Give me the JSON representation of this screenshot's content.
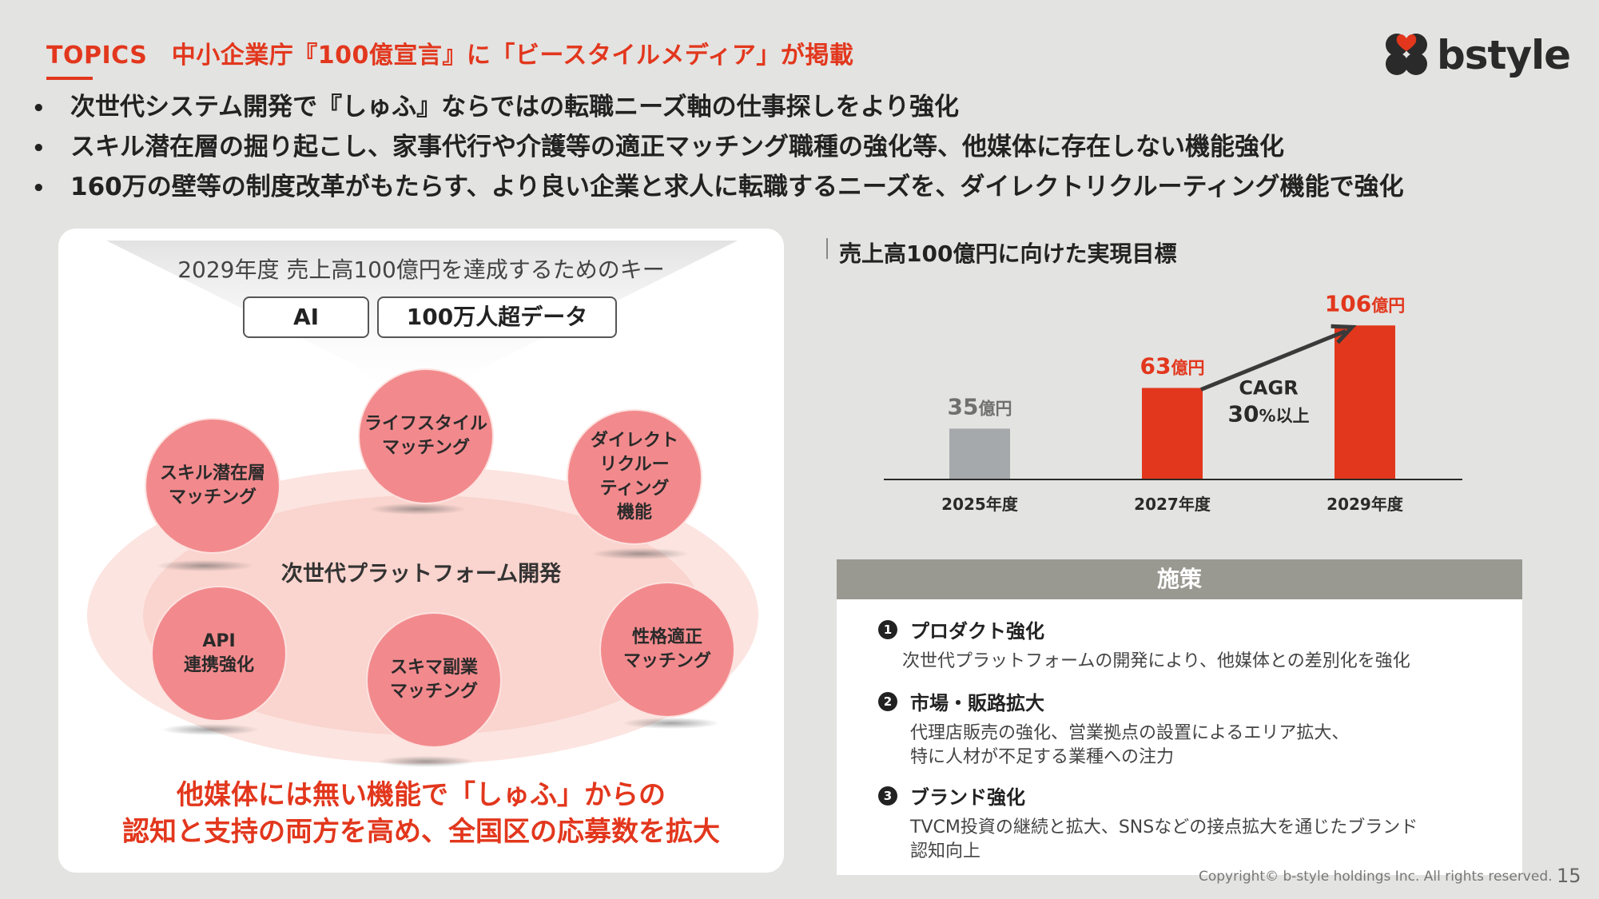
{
  "header": {
    "topic": "TOPICS　中小企業庁『100億宣言』に「ビースタイルメディア」が掲載",
    "logo_text": "bstyle"
  },
  "bullets": [
    "次世代システム開発で『しゅふ』ならではの転職ニーズ軸の仕事探しをより強化",
    "スキル潜在層の掘り起こし、家事代行や介護等の適正マッチング職種の強化等、他媒体に存在しない機能強化",
    "160万の壁等の制度改革がもたらす、より良い企業と求人に転職するニーズを、ダイレクトリクルーティング機能で強化"
  ],
  "left_panel": {
    "key_title": "2029年度 売上高100億円を達成するためのキー",
    "keys": [
      "AI",
      "100万人超データ"
    ],
    "circles": [
      "ライフスタイル\nマッチング",
      "スキル潜在層\nマッチング",
      "ダイレクト\nリクルー\nティング\n機能",
      "API\n連携強化",
      "スキマ副業\nマッチング",
      "性格適正\nマッチング"
    ],
    "platform": "次世代プラットフォーム開発",
    "tagline": "他媒体には無い機能で「しゅふ」からの\n認知と支持の両方を高め、全国区の応募数を拡大"
  },
  "chart_data": {
    "type": "bar",
    "title": "売上高100億円に向けた実現目標",
    "categories": [
      "2025年度",
      "2027年度",
      "2029年度"
    ],
    "values": [
      35,
      63,
      106
    ],
    "value_labels": [
      "35",
      "63",
      "106"
    ],
    "unit": "億円",
    "ylim": [
      0,
      110
    ],
    "colors": [
      "#a6a9ac",
      "#e2371d",
      "#e2371d"
    ],
    "value_label_colors": [
      "#707070",
      "#e2371d",
      "#e2371d"
    ],
    "annotation": {
      "line1": "CAGR",
      "line2_value": "30",
      "line2_unit": "%以上"
    },
    "grid": false,
    "legend": "none"
  },
  "measures": {
    "header": "施策",
    "items": [
      {
        "num": "1",
        "title": "プロダクト強化",
        "desc": "次世代プラットフォームの開発により、他媒体との差別化を強化"
      },
      {
        "num": "2",
        "title": "市場・販路拡大",
        "desc": "代理店販売の強化、営業拠点の設置によるエリア拡大、\n特に人材が不足する業種への注力"
      },
      {
        "num": "3",
        "title": "ブランド強化",
        "desc": "TVCM投資の継続と拡大、SNSなどの接点拡大を通じたブランド\n認知向上"
      }
    ]
  },
  "footer": {
    "copyright": "Copyright© b-style holdings Inc. All rights reserved.",
    "page": "15"
  },
  "colors": {
    "accent": "#e2371d",
    "circle": "#f28a8d",
    "gray_bar": "#a6a9ac"
  }
}
